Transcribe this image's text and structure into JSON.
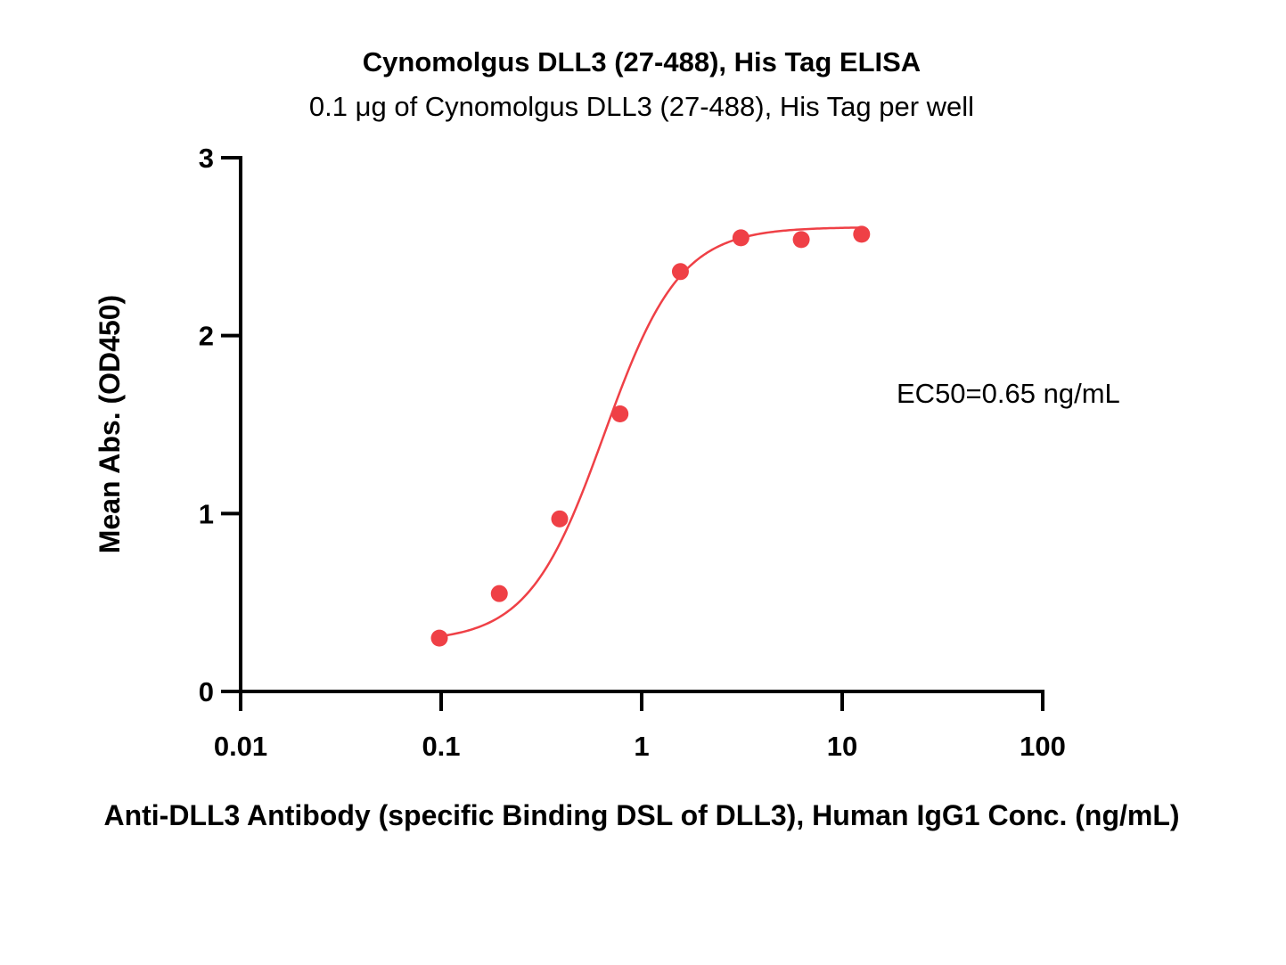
{
  "chart_data": {
    "type": "scatter",
    "title": "Cynomolgus DLL3 (27-488), His Tag ELISA",
    "subtitle": "0.1 μg of Cynomolgus DLL3 (27-488), His Tag per well",
    "xlabel": "Anti-DLL3 Antibody (specific Binding DSL of DLL3), Human IgG1 Conc. (ng/mL)",
    "ylabel": "Mean Abs. (OD450)",
    "x_scale": "log",
    "xlim": [
      0.01,
      100
    ],
    "ylim": [
      0,
      3
    ],
    "x_ticks": [
      0.01,
      0.1,
      1,
      10,
      100
    ],
    "x_tick_labels": [
      "0.01",
      "0.1",
      "1",
      "10",
      "100"
    ],
    "y_ticks": [
      0,
      1,
      2,
      3
    ],
    "y_tick_labels": [
      "0",
      "1",
      "2",
      "3"
    ],
    "grid": false,
    "annotation": "EC50=0.65 ng/mL",
    "series": [
      {
        "color": "#ef4046",
        "x": [
          0.098,
          0.195,
          0.39,
          0.78,
          1.56,
          3.125,
          6.25,
          12.5
        ],
        "y": [
          0.3,
          0.55,
          0.97,
          1.56,
          2.36,
          2.55,
          2.54,
          2.57
        ]
      }
    ],
    "fit": {
      "model": "4PL",
      "bottom": 0.28,
      "top": 2.61,
      "ec50": 0.65,
      "hill": 2.3
    }
  }
}
